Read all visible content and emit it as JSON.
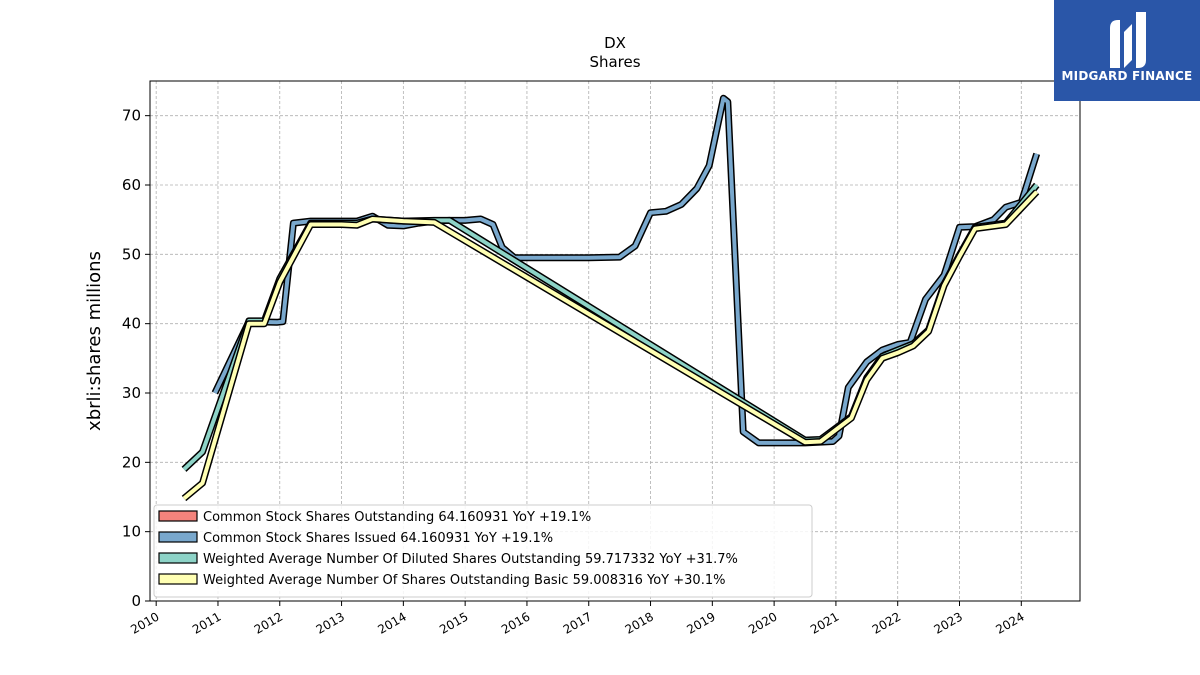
{
  "chart_data": {
    "type": "line",
    "title": "DX",
    "subtitle": "Shares",
    "ylabel": "xbrli:shares millions",
    "xlabel": "",
    "xlim": [
      2009.9,
      2024.95
    ],
    "ylim": [
      0,
      75
    ],
    "yticks": [
      0,
      10,
      20,
      30,
      40,
      50,
      60,
      70
    ],
    "xticks": [
      "2010",
      "2011",
      "2012",
      "2013",
      "2014",
      "2015",
      "2016",
      "2017",
      "2018",
      "2019",
      "2020",
      "2021",
      "2022",
      "2023",
      "2024"
    ],
    "grid": true,
    "legend_position": "lower-left",
    "series": [
      {
        "name": "Common Stock Shares Outstanding  64.160931 YoY +19.1%",
        "color": "#f4837c",
        "points": []
      },
      {
        "name": "Common Stock Shares Issued  64.160931 YoY +19.1%",
        "color": "#79a8cd",
        "points": [
          [
            2010.95,
            30.0
          ],
          [
            2011.5,
            40.3
          ],
          [
            2011.95,
            40.2
          ],
          [
            2012.05,
            40.3
          ],
          [
            2012.22,
            54.5
          ],
          [
            2012.5,
            54.8
          ],
          [
            2013.0,
            54.8
          ],
          [
            2013.25,
            54.8
          ],
          [
            2013.5,
            55.5
          ],
          [
            2013.75,
            54.2
          ],
          [
            2014.0,
            54.1
          ],
          [
            2014.25,
            54.5
          ],
          [
            2014.5,
            54.8
          ],
          [
            2014.75,
            54.9
          ],
          [
            2015.0,
            54.9
          ],
          [
            2015.25,
            55.1
          ],
          [
            2015.45,
            54.3
          ],
          [
            2015.6,
            51.0
          ],
          [
            2015.8,
            49.5
          ],
          [
            2016.0,
            49.5
          ],
          [
            2016.5,
            49.5
          ],
          [
            2017.0,
            49.5
          ],
          [
            2017.5,
            49.6
          ],
          [
            2017.75,
            51.2
          ],
          [
            2018.0,
            56.0
          ],
          [
            2018.25,
            56.2
          ],
          [
            2018.5,
            57.2
          ],
          [
            2018.75,
            59.5
          ],
          [
            2018.95,
            62.8
          ],
          [
            2019.18,
            72.5
          ],
          [
            2019.25,
            72.0
          ],
          [
            2019.5,
            24.4
          ],
          [
            2019.75,
            22.8
          ],
          [
            2020.0,
            22.8
          ],
          [
            2020.5,
            22.8
          ],
          [
            2020.95,
            23.0
          ],
          [
            2021.05,
            23.8
          ],
          [
            2021.2,
            30.8
          ],
          [
            2021.5,
            34.5
          ],
          [
            2021.75,
            36.2
          ],
          [
            2022.0,
            37.0
          ],
          [
            2022.2,
            37.3
          ],
          [
            2022.45,
            43.5
          ],
          [
            2022.75,
            47.0
          ],
          [
            2023.0,
            53.9
          ],
          [
            2023.25,
            54.0
          ],
          [
            2023.55,
            55.0
          ],
          [
            2023.75,
            56.8
          ],
          [
            2024.0,
            57.5
          ],
          [
            2024.25,
            64.5
          ]
        ]
      },
      {
        "name": "Weighted Average Number Of Diluted Shares Outstanding  59.717332 YoY +31.7%",
        "color": "#8dd3c7",
        "points": [
          [
            2010.45,
            19.0
          ],
          [
            2010.75,
            21.5
          ],
          [
            2011.5,
            40.4
          ],
          [
            2011.75,
            40.4
          ],
          [
            2012.0,
            46.5
          ],
          [
            2012.5,
            54.5
          ],
          [
            2013.0,
            54.5
          ],
          [
            2013.25,
            54.5
          ],
          [
            2013.5,
            55.1
          ],
          [
            2014.0,
            54.8
          ],
          [
            2014.5,
            54.9
          ],
          [
            2014.75,
            54.9
          ],
          [
            2020.5,
            23.2
          ],
          [
            2020.75,
            23.3
          ],
          [
            2021.25,
            26.6
          ],
          [
            2021.5,
            32.2
          ],
          [
            2021.75,
            35.3
          ],
          [
            2022.0,
            36.2
          ],
          [
            2022.25,
            37.1
          ],
          [
            2022.5,
            39.1
          ],
          [
            2022.75,
            45.7
          ],
          [
            2023.0,
            49.9
          ],
          [
            2023.25,
            53.9
          ],
          [
            2023.75,
            54.5
          ],
          [
            2024.25,
            60.0
          ]
        ]
      },
      {
        "name": "Weighted Average Number Of Shares Outstanding Basic  59.008316 YoY +30.1%",
        "color": "#ffffb3",
        "points": [
          [
            2010.45,
            14.8
          ],
          [
            2010.75,
            17.0
          ],
          [
            2011.5,
            40.0
          ],
          [
            2011.75,
            40.0
          ],
          [
            2012.0,
            46.0
          ],
          [
            2012.5,
            54.3
          ],
          [
            2013.0,
            54.3
          ],
          [
            2013.25,
            54.2
          ],
          [
            2013.5,
            55.1
          ],
          [
            2014.0,
            54.8
          ],
          [
            2014.5,
            54.6
          ],
          [
            2020.5,
            22.9
          ],
          [
            2020.75,
            23.0
          ],
          [
            2021.25,
            26.4
          ],
          [
            2021.5,
            31.9
          ],
          [
            2021.75,
            35.0
          ],
          [
            2022.0,
            35.8
          ],
          [
            2022.25,
            36.8
          ],
          [
            2022.5,
            38.9
          ],
          [
            2022.75,
            45.5
          ],
          [
            2023.0,
            49.7
          ],
          [
            2023.25,
            53.7
          ],
          [
            2023.75,
            54.3
          ],
          [
            2024.25,
            59.0
          ]
        ]
      }
    ]
  },
  "logo": {
    "text": "MIDGARD FINANCE",
    "color": "#2a56a8"
  }
}
